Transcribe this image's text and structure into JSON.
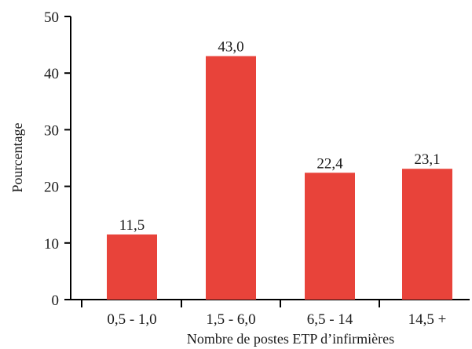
{
  "chart_data": {
    "type": "bar",
    "categories": [
      "0,5 - 1,0",
      "1,5 - 6,0",
      "6,5 - 14",
      "14,5 +"
    ],
    "values": [
      11.5,
      43.0,
      22.4,
      23.1
    ],
    "value_labels": [
      "11,5",
      "43,0",
      "22,4",
      "23,1"
    ],
    "xlabel": "Nombre de postes ETP d’infirmières",
    "ylabel": "Pourcentage",
    "ylim": [
      0,
      50
    ],
    "yticks": [
      0,
      10,
      20,
      30,
      40,
      50
    ],
    "grid": false,
    "bar_color": "#e8433a"
  }
}
